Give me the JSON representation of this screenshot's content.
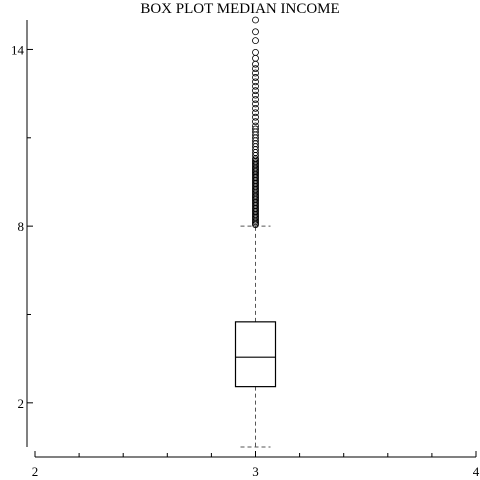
{
  "chart_data": {
    "type": "box",
    "title": "BOX PLOT MEDIAN INCOME",
    "xlabel": "",
    "ylabel": "",
    "x_ticks": [
      2,
      3,
      4
    ],
    "x_minor_ticks": [
      2.2,
      2.4,
      2.6,
      2.8,
      3.2,
      3.4,
      3.6,
      3.8
    ],
    "y_ticks": [
      2,
      8,
      14
    ],
    "y_minor_ticks": [
      5,
      11
    ],
    "xlim": [
      2,
      4
    ],
    "ylim": [
      0.5,
      15
    ],
    "box": {
      "x": 3,
      "whisker_low": 0.5,
      "q1": 2.55,
      "median": 3.55,
      "q3": 4.75,
      "whisker_high": 8.0
    },
    "outliers": [
      8.05,
      8.1,
      8.15,
      8.2,
      8.25,
      8.3,
      8.35,
      8.4,
      8.45,
      8.5,
      8.55,
      8.6,
      8.65,
      8.7,
      8.75,
      8.8,
      8.85,
      8.9,
      8.95,
      9.0,
      9.05,
      9.1,
      9.15,
      9.2,
      9.25,
      9.3,
      9.35,
      9.4,
      9.45,
      9.5,
      9.55,
      9.6,
      9.65,
      9.7,
      9.75,
      9.8,
      9.85,
      9.9,
      9.95,
      10.0,
      10.05,
      10.1,
      10.15,
      10.2,
      10.25,
      10.3,
      10.4,
      10.5,
      10.6,
      10.7,
      10.8,
      10.9,
      11.0,
      11.1,
      11.2,
      11.3,
      11.4,
      11.55,
      11.7,
      11.85,
      12.0,
      12.15,
      12.3,
      12.45,
      12.6,
      12.75,
      12.9,
      13.05,
      13.2,
      13.35,
      13.5,
      13.7,
      13.9,
      14.3,
      14.6,
      15.0
    ]
  }
}
